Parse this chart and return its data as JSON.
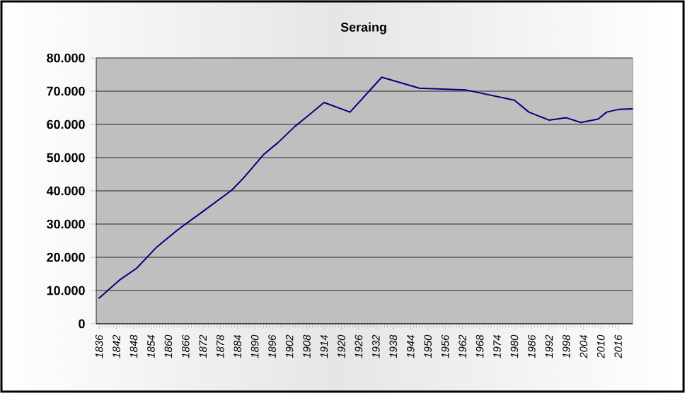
{
  "chart_data": {
    "type": "line",
    "title": "Seraing",
    "x": [
      1836,
      1843,
      1849,
      1856,
      1863,
      1872,
      1882,
      1886,
      1893,
      1898,
      1904,
      1908,
      1914,
      1923,
      1934,
      1947,
      1963,
      1980,
      1985,
      1992,
      1998,
      2003,
      2009,
      2012,
      2016,
      2021
    ],
    "series": [
      {
        "color": "#000080",
        "values": [
          7700,
          13100,
          16700,
          23100,
          28100,
          33800,
          40200,
          43800,
          50900,
          54500,
          59500,
          62300,
          66600,
          63700,
          74200,
          70900,
          70400,
          67300,
          63700,
          61300,
          62000,
          60600,
          61600,
          63700,
          64500,
          64700
        ]
      }
    ],
    "xlim": [
      1835,
      2021
    ],
    "xticks": [
      1836,
      1842,
      1848,
      1854,
      1860,
      1866,
      1872,
      1878,
      1884,
      1890,
      1896,
      1902,
      1908,
      1914,
      1920,
      1926,
      1932,
      1938,
      1944,
      1950,
      1956,
      1962,
      1968,
      1974,
      1980,
      1986,
      1992,
      1998,
      2004,
      2010,
      2016
    ],
    "ylim": [
      0,
      80000
    ],
    "yticks": [
      {
        "value": 0,
        "label": "0"
      },
      {
        "value": 10000,
        "label": "10.000"
      },
      {
        "value": 20000,
        "label": "20.000"
      },
      {
        "value": 30000,
        "label": "30.000"
      },
      {
        "value": 40000,
        "label": "40.000"
      },
      {
        "value": 50000,
        "label": "50.000"
      },
      {
        "value": 60000,
        "label": "60.000"
      },
      {
        "value": 70000,
        "label": "70.000"
      },
      {
        "value": 80000,
        "label": "80.000"
      }
    ],
    "grid": "y",
    "marker": "none",
    "line_style": "solid"
  }
}
